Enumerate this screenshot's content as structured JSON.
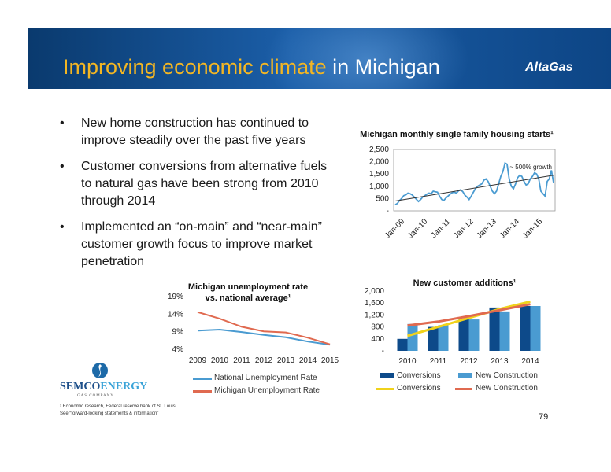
{
  "header": {
    "title_highlight": "Improving economic climate",
    "title_rest": " in Michigan",
    "logo": "AltaGas",
    "colors": {
      "band": "#0d4585",
      "highlight": "#f3b623"
    }
  },
  "bullets": [
    "New home construction has continued to improve steadily over the past five years",
    "Customer conversions from alternative fuels to natural gas have been strong from 2010 through 2014",
    "Implemented an “on-main” and “near-main” customer growth focus to improve market penetration"
  ],
  "semco": {
    "name_part1": "SEMCO",
    "name_part2": "ENERGY",
    "sub": "GAS COMPANY",
    "icon": "flame-swirl-icon"
  },
  "footnotes": [
    "¹ Economic research, Federal reserve bank of St. Louis",
    "See “forward-looking statements & information”"
  ],
  "page_number": "79",
  "chart_data": [
    {
      "id": "housing",
      "type": "line",
      "title": "Michigan monthly single family housing starts¹",
      "annotation": "~ 500% growth",
      "y_ticks": [
        "2,500",
        "2,000",
        "1,500",
        "1,000",
        "500",
        "-"
      ],
      "ylim": [
        0,
        2500
      ],
      "x_ticks": [
        "Jan-09",
        "Jan-10",
        "Jan-11",
        "Jan-12",
        "Jan-13",
        "Jan-14",
        "Jan-15"
      ],
      "series": [
        {
          "values": [
            250,
            300,
            420,
            500,
            620,
            650,
            720,
            700,
            650,
            560,
            470,
            380,
            460,
            560,
            620,
            680,
            720,
            700,
            800,
            780,
            760,
            600,
            460,
            420,
            520,
            600,
            680,
            740,
            760,
            720,
            820,
            860,
            780,
            640,
            560,
            460,
            600,
            760,
            900,
            1000,
            1050,
            1100,
            1250,
            1300,
            1200,
            1000,
            800,
            700,
            800,
            1100,
            1400,
            1600,
            1950,
            1900,
            1300,
            1000,
            900,
            1100,
            1350,
            1450,
            1400,
            1200,
            1050,
            1100,
            1300,
            1400,
            1550,
            1500,
            1300,
            800,
            700,
            600,
            1200,
            1300,
            1650,
            1150
          ],
          "color": "#4a9bd1"
        },
        {
          "trend": true,
          "values": [
            400,
            1450
          ],
          "color": "#333333"
        }
      ]
    },
    {
      "id": "unemployment",
      "type": "line",
      "title_line1": "Michigan unemployment rate",
      "title_line2": "vs. national average¹",
      "categories": [
        "2009",
        "2010",
        "2011",
        "2012",
        "2013",
        "2014",
        "2015"
      ],
      "y_ticks": [
        "19%",
        "14%",
        "9%",
        "4%"
      ],
      "ylim": [
        4,
        19
      ],
      "series": [
        {
          "name": "National Unemployment Rate",
          "values": [
            9.3,
            9.6,
            8.9,
            8.1,
            7.4,
            6.2,
            5.3
          ],
          "color": "#4a9bd1"
        },
        {
          "name": "Michigan Unemployment Rate",
          "values": [
            14.6,
            12.7,
            10.4,
            9.1,
            8.8,
            7.3,
            5.4
          ],
          "color": "#e06a50"
        }
      ]
    },
    {
      "id": "customers",
      "type": "bar",
      "title": "New customer additions¹",
      "categories": [
        "2010",
        "2011",
        "2012",
        "2013",
        "2014"
      ],
      "y_ticks": [
        "2,000",
        "1,600",
        "1,200",
        "800",
        "400",
        "-"
      ],
      "ylim": [
        0,
        2000
      ],
      "series": [
        {
          "name": "Conversions",
          "type": "bar",
          "values": [
            400,
            800,
            1080,
            1450,
            1500
          ],
          "color": "#0d4a8a"
        },
        {
          "name": "New Construction",
          "type": "bar",
          "values": [
            900,
            860,
            1050,
            1320,
            1500
          ],
          "color": "#4a9bd1"
        },
        {
          "name": "Conversions",
          "type": "line",
          "values": [
            500,
            800,
            1100,
            1400,
            1650
          ],
          "color": "#f0d21b"
        },
        {
          "name": "New Construction",
          "type": "line",
          "values": [
            850,
            980,
            1160,
            1360,
            1560
          ],
          "color": "#e06a50"
        }
      ]
    }
  ]
}
